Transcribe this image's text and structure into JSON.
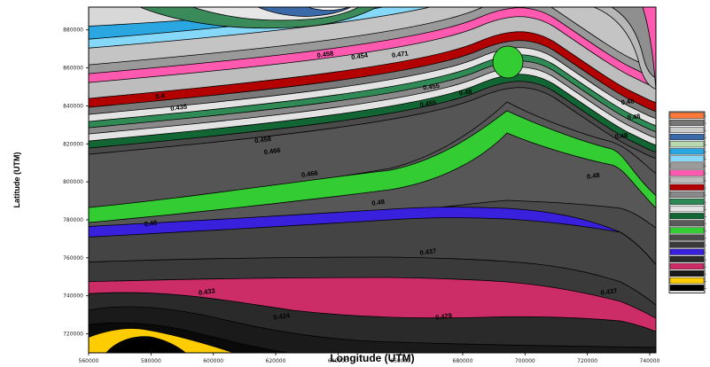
{
  "chart_data": {
    "type": "contour",
    "xlabel": "Longitude (UTM)",
    "ylabel": "Latitude (UTM)",
    "x_ticks": [
      "560000",
      "580000",
      "600000",
      "620000",
      "640000",
      "660000",
      "680000",
      "700000",
      "720000",
      "740000"
    ],
    "y_ticks": [
      "880000",
      "860000",
      "840000",
      "820000",
      "800000",
      "780000",
      "760000",
      "740000",
      "720000"
    ],
    "xlim": [
      560000,
      742000
    ],
    "ylim": [
      710000,
      892000
    ],
    "grid": false,
    "legend_position": "right",
    "contour_labels": [
      {
        "text": "0.458",
        "x": 636000,
        "y": 866000
      },
      {
        "text": "0.454",
        "x": 647000,
        "y": 865000
      },
      {
        "text": "0.471",
        "x": 660000,
        "y": 866000
      },
      {
        "text": "0.4",
        "x": 583000,
        "y": 844000
      },
      {
        "text": "0.435",
        "x": 589000,
        "y": 838000
      },
      {
        "text": "0.455",
        "x": 670000,
        "y": 849000
      },
      {
        "text": "0.48",
        "x": 681000,
        "y": 846000
      },
      {
        "text": "0.455",
        "x": 669000,
        "y": 840000
      },
      {
        "text": "0.458",
        "x": 616000,
        "y": 821000
      },
      {
        "text": "0.466",
        "x": 619000,
        "y": 815000
      },
      {
        "text": "0.466",
        "x": 631000,
        "y": 803000
      },
      {
        "text": "0.48",
        "x": 733000,
        "y": 841000
      },
      {
        "text": "0.48",
        "x": 735000,
        "y": 833000
      },
      {
        "text": "0.48",
        "x": 731000,
        "y": 823000
      },
      {
        "text": "0.48",
        "x": 722000,
        "y": 802000
      },
      {
        "text": "0.48",
        "x": 580000,
        "y": 777000
      },
      {
        "text": "0.48",
        "x": 653000,
        "y": 788000
      },
      {
        "text": "0.437",
        "x": 669000,
        "y": 762000
      },
      {
        "text": "0.437",
        "x": 727000,
        "y": 741000
      },
      {
        "text": "0.433",
        "x": 598000,
        "y": 741000
      },
      {
        "text": "0.424",
        "x": 622000,
        "y": 728000
      },
      {
        "text": "0.429",
        "x": 674000,
        "y": 728000
      }
    ],
    "legend_colors": [
      "#ff7a3a",
      "#777777",
      "#cccccc",
      "#3a6aa8",
      "#b8d8b0",
      "#2aa7e0",
      "#86d8f8",
      "#9a9a9a",
      "#ff59b0",
      "#bdbdbd",
      "#b30000",
      "#8a8a8a",
      "#2f8a56",
      "#e3e3e3",
      "#116633",
      "#5a5a5a",
      "#33cc33",
      "#4a4a4a",
      "#3a3a3a",
      "#3820dd",
      "#2a2a2a",
      "#cc2d66",
      "#1a1a1a",
      "#ffcc00",
      "#000000"
    ]
  }
}
